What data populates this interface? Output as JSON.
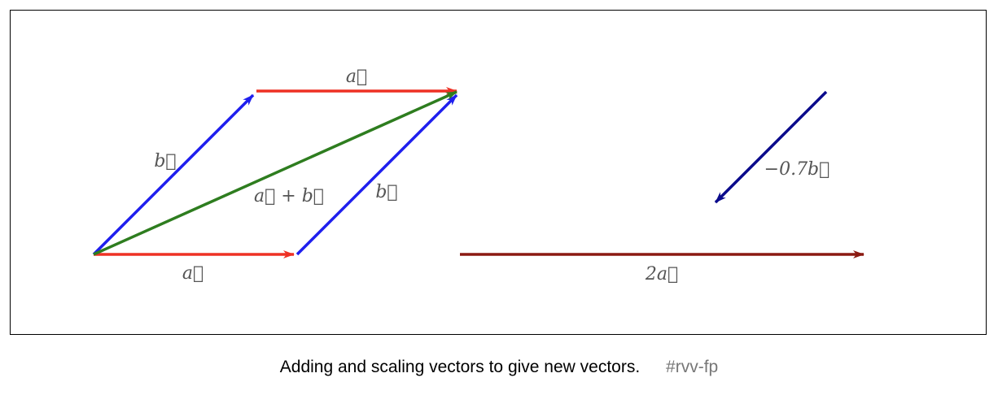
{
  "diagram": {
    "colors": {
      "a": "#ee3124",
      "b": "#1f1fee",
      "sum": "#2e7d1f",
      "neg_b": "#0b0b8c",
      "two_a": "#8b1a12"
    },
    "labels": {
      "a_top": "a⃗",
      "b_left": "b⃗",
      "a_plus_b": "a⃗ + b⃗",
      "b_right": "b⃗",
      "a_bottom": "a⃗",
      "neg_07_b": "−0.7b⃗",
      "two_a": "2a⃗"
    }
  },
  "caption": {
    "text": "Adding and scaling vectors to give new vectors.",
    "tag": "#rvv-fp"
  }
}
